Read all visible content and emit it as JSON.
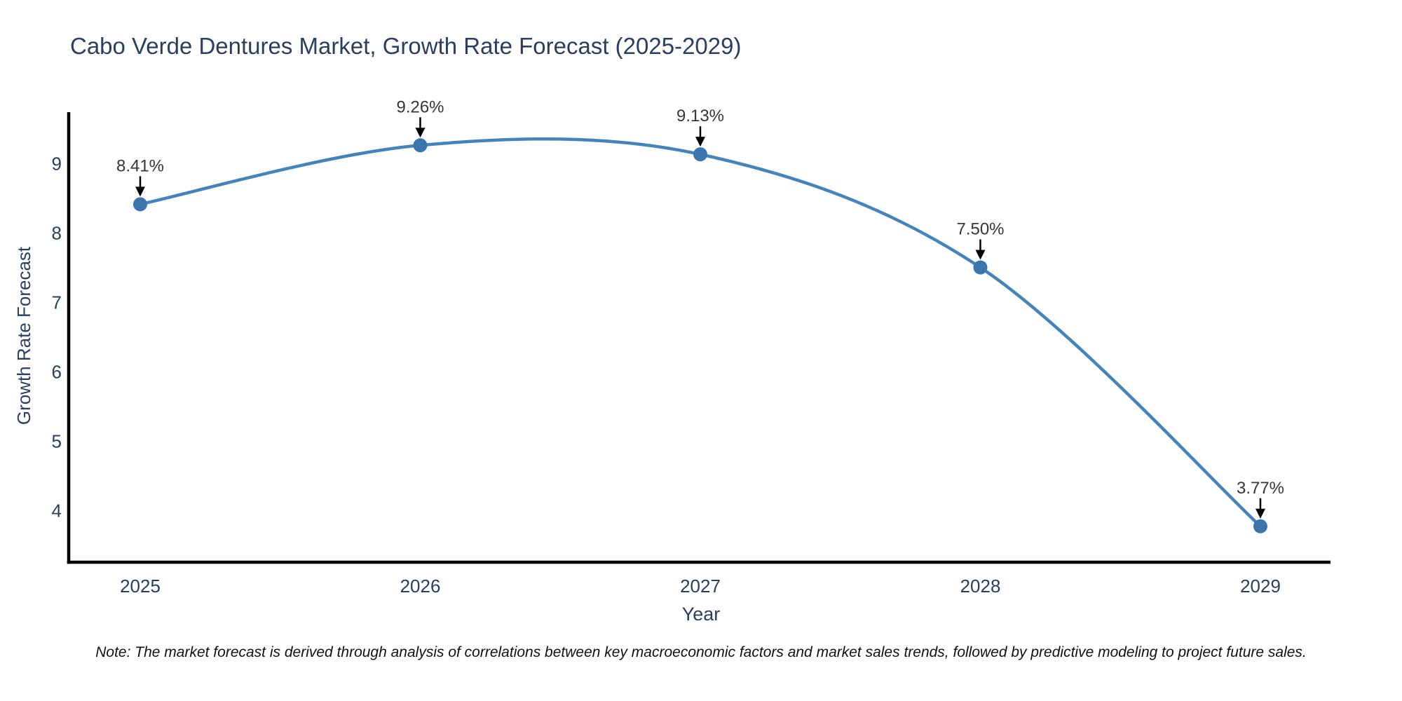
{
  "chart_data": {
    "type": "line",
    "title": "Cabo Verde Dentures Market, Growth Rate Forecast (2025-2029)",
    "xlabel": "Year",
    "ylabel": "Growth Rate Forecast",
    "categories": [
      "2025",
      "2026",
      "2027",
      "2028",
      "2029"
    ],
    "series": [
      {
        "name": "Growth Rate Forecast",
        "values": [
          8.41,
          9.26,
          9.13,
          7.5,
          3.77
        ]
      }
    ],
    "point_labels": [
      "8.41%",
      "9.26%",
      "9.13%",
      "7.50%",
      "3.77%"
    ],
    "y_ticks": [
      4,
      5,
      6,
      7,
      8,
      9
    ],
    "ylim": [
      3.25,
      9.75
    ],
    "line_shape": "spline",
    "grid": false,
    "legend_position": "none",
    "colors": {
      "line": "#4484ba",
      "marker": "#3a76ac",
      "axis": "#000000",
      "tick_text": "#2a3f5f",
      "title_text": "#2b3e5f",
      "annotation_text": "#363636",
      "arrow": "#000000",
      "background": "#ffffff"
    }
  },
  "footnote": "Note: The market forecast is derived through analysis of correlations between key macroeconomic factors and market sales trends, followed by predictive modeling to project future sales."
}
